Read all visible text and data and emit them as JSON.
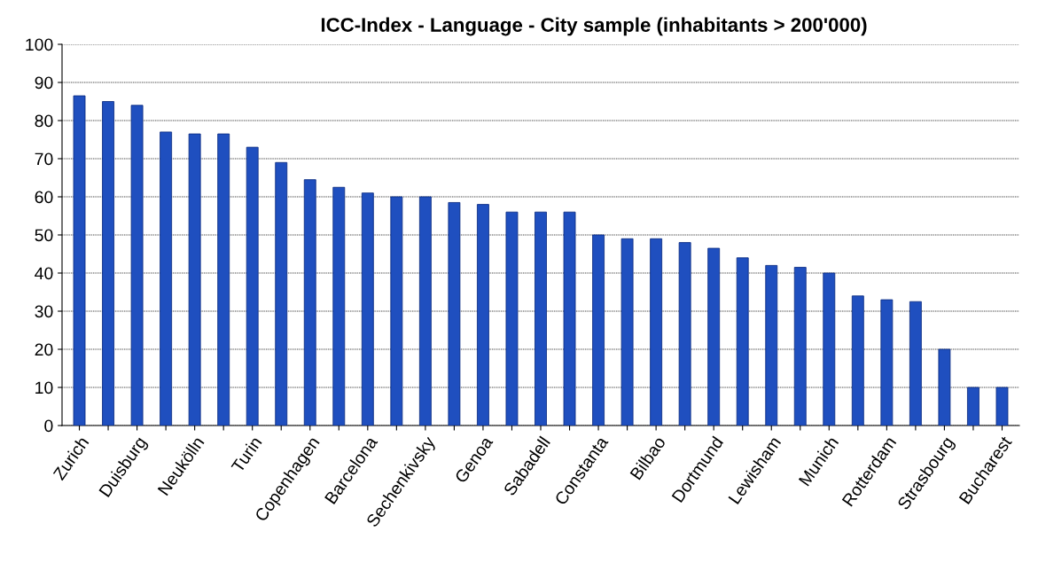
{
  "chart_data": {
    "type": "bar",
    "title": "ICC-Index - Language - City sample (inhabitants > 200'000)",
    "categories": [
      "Zurich",
      null,
      "Duisburg",
      null,
      "Neukölln",
      null,
      "Turin",
      null,
      "Copenhagen",
      null,
      "Barcelona",
      null,
      "Sechenkivsky",
      null,
      "Genoa",
      null,
      "Sabadell",
      null,
      "Constanta",
      null,
      "Bilbao",
      null,
      "Dortmund",
      null,
      "Lewisham",
      null,
      "Munich",
      null,
      "Rotterdam",
      null,
      "Strasbourg",
      null,
      "Bucharest"
    ],
    "values": [
      86.5,
      85,
      84,
      77,
      76.5,
      76.5,
      73,
      69,
      64.5,
      62.5,
      61,
      60,
      60,
      58.5,
      58,
      56,
      56,
      56,
      50,
      49,
      49,
      48,
      46.5,
      44,
      42,
      41.5,
      40,
      34,
      33,
      32.5,
      20,
      10,
      10
    ],
    "color": "#1f4fbf",
    "ylim": [
      0,
      100
    ],
    "yticks": [
      0,
      10,
      20,
      30,
      40,
      50,
      60,
      70,
      80,
      90,
      100
    ],
    "grid": "y"
  }
}
